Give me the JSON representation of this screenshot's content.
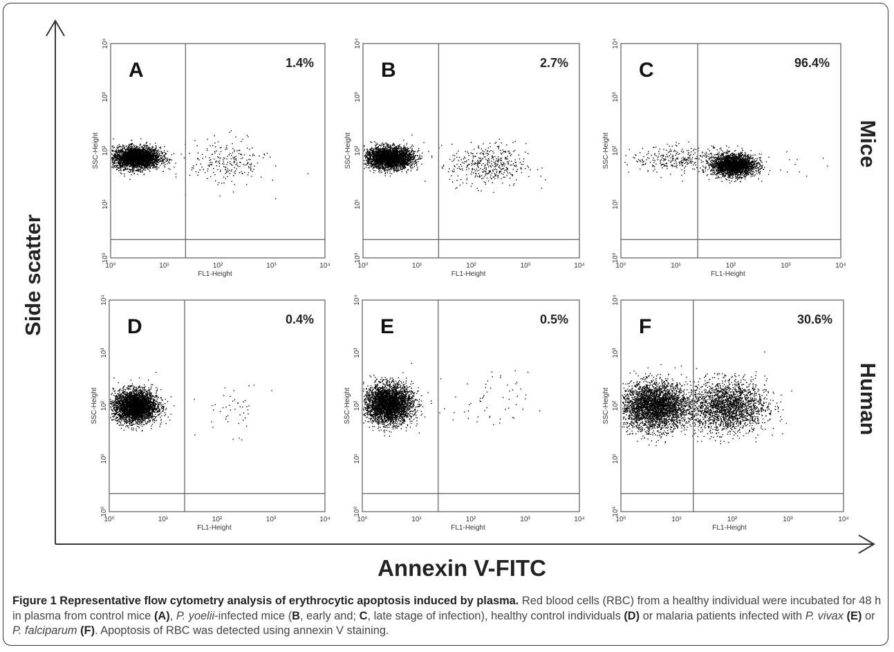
{
  "figure": {
    "y_axis_title": "Side scatter",
    "x_axis_title": "Annexin V-FITC",
    "row_labels": [
      "Mice",
      "Human"
    ]
  },
  "chart_data": [
    {
      "type": "scatter",
      "panel": "A",
      "row": "Mice",
      "percent_label": "1.4%",
      "xlabel": "FL1-Height",
      "ylabel": "SSC-Height",
      "xscale": "log",
      "yscale": "log",
      "xlim": [
        1,
        10000
      ],
      "ylim": [
        1,
        10000
      ],
      "xticks": [
        "10⁰",
        "10¹",
        "10²",
        "10³",
        "10⁴"
      ],
      "yticks": [
        "10⁰",
        "10¹",
        "10²",
        "10³",
        "10⁴"
      ],
      "gate_x": 25,
      "gate_y": 2.2,
      "percent_positive": 1.4,
      "clusters": [
        {
          "cx": 3,
          "cy": 75,
          "sx": 0.22,
          "sy": 0.1,
          "n": 3200
        },
        {
          "cx": 150,
          "cy": 60,
          "sx": 0.35,
          "sy": 0.22,
          "n": 230
        }
      ]
    },
    {
      "type": "scatter",
      "panel": "B",
      "row": "Mice",
      "percent_label": "2.7%",
      "xlabel": "FL1-Height",
      "ylabel": "SSC-Height",
      "xscale": "log",
      "yscale": "log",
      "xlim": [
        1,
        10000
      ],
      "ylim": [
        1,
        10000
      ],
      "xticks": [
        "10⁰",
        "10¹",
        "10²",
        "10³",
        "10⁴"
      ],
      "yticks": [
        "10⁰",
        "10¹",
        "10²",
        "10³",
        "10⁴"
      ],
      "gate_x": 25,
      "gate_y": 2.2,
      "percent_positive": 2.7,
      "clusters": [
        {
          "cx": 3,
          "cy": 75,
          "sx": 0.22,
          "sy": 0.1,
          "n": 3200
        },
        {
          "cx": 200,
          "cy": 55,
          "sx": 0.35,
          "sy": 0.2,
          "n": 420
        }
      ]
    },
    {
      "type": "scatter",
      "panel": "C",
      "row": "Mice",
      "percent_label": "96.4%",
      "xlabel": "FL1-Height",
      "ylabel": "SSC-Height",
      "xscale": "log",
      "yscale": "log",
      "xlim": [
        1,
        10000
      ],
      "ylim": [
        1,
        10000
      ],
      "xticks": [
        "10⁰",
        "10¹",
        "10²",
        "10³",
        "10⁴"
      ],
      "yticks": [
        "10⁰",
        "10¹",
        "10²",
        "10³",
        "10⁴"
      ],
      "gate_x": 25,
      "gate_y": 2.2,
      "percent_positive": 96.4,
      "clusters": [
        {
          "cx": 110,
          "cy": 55,
          "sx": 0.2,
          "sy": 0.1,
          "n": 2600
        },
        {
          "cx": 12,
          "cy": 70,
          "sx": 0.45,
          "sy": 0.12,
          "n": 320
        },
        {
          "cx": 1500,
          "cy": 70,
          "sx": 0.25,
          "sy": 0.15,
          "n": 10
        }
      ]
    },
    {
      "type": "scatter",
      "panel": "D",
      "row": "Human",
      "percent_label": "0.4%",
      "xlabel": "FL1-Height",
      "ylabel": "SSC-Height",
      "xscale": "log",
      "yscale": "log",
      "xlim": [
        1,
        10000
      ],
      "ylim": [
        1,
        10000
      ],
      "xticks": [
        "10⁰",
        "10¹",
        "10²",
        "10³",
        "10⁴"
      ],
      "yticks": [
        "10⁰",
        "10¹",
        "10²",
        "10³",
        "10⁴"
      ],
      "gate_x": 25,
      "gate_y": 2.2,
      "percent_positive": 0.4,
      "clusters": [
        {
          "cx": 3,
          "cy": 100,
          "sx": 0.2,
          "sy": 0.15,
          "n": 3600
        },
        {
          "cx": 200,
          "cy": 90,
          "sx": 0.3,
          "sy": 0.25,
          "n": 45
        }
      ]
    },
    {
      "type": "scatter",
      "panel": "E",
      "row": "Human",
      "percent_label": "0.5%",
      "xlabel": "FL1-Height",
      "ylabel": "SSC-Height",
      "xscale": "log",
      "yscale": "log",
      "xlim": [
        1,
        10000
      ],
      "ylim": [
        1,
        10000
      ],
      "xticks": [
        "10⁰",
        "10¹",
        "10²",
        "10³",
        "10⁴"
      ],
      "yticks": [
        "10⁰",
        "10¹",
        "10²",
        "10³",
        "10⁴"
      ],
      "gate_x": 25,
      "gate_y": 2.2,
      "percent_positive": 0.5,
      "clusters": [
        {
          "cx": 3,
          "cy": 110,
          "sx": 0.22,
          "sy": 0.18,
          "n": 3600
        },
        {
          "cx": 220,
          "cy": 110,
          "sx": 0.35,
          "sy": 0.3,
          "n": 55
        }
      ]
    },
    {
      "type": "scatter",
      "panel": "F",
      "row": "Human",
      "percent_label": "30.6%",
      "xlabel": "FL1-Height",
      "ylabel": "SSC-Height",
      "xscale": "log",
      "yscale": "log",
      "xlim": [
        1,
        10000
      ],
      "ylim": [
        1,
        10000
      ],
      "xticks": [
        "10⁰",
        "10¹",
        "10²",
        "10³",
        "10⁴"
      ],
      "yticks": [
        "10⁰",
        "10¹",
        "10²",
        "10³",
        "10⁴"
      ],
      "gate_x": 20,
      "gate_y": 2.2,
      "percent_positive": 30.6,
      "clusters": [
        {
          "cx": 4,
          "cy": 100,
          "sx": 0.3,
          "sy": 0.22,
          "n": 3400
        },
        {
          "cx": 80,
          "cy": 100,
          "sx": 0.35,
          "sy": 0.24,
          "n": 2200
        }
      ]
    }
  ],
  "caption": {
    "title": "Figure 1 Representative flow cytometry analysis of erythrocytic apoptosis induced by plasma.",
    "parts": [
      {
        "text": " Red blood cells (RBC) from a healthy individual were incubated for 48 h in plasma from control mice ",
        "style": "normal"
      },
      {
        "text": "(A)",
        "style": "bold"
      },
      {
        "text": ", ",
        "style": "normal"
      },
      {
        "text": "P. yoelii",
        "style": "italic"
      },
      {
        "text": "-infected mice (",
        "style": "normal"
      },
      {
        "text": "B",
        "style": "bold"
      },
      {
        "text": ", early and; ",
        "style": "normal"
      },
      {
        "text": "C",
        "style": "bold"
      },
      {
        "text": ", late stage of infection), healthy control individuals ",
        "style": "normal"
      },
      {
        "text": "(D)",
        "style": "bold"
      },
      {
        "text": " or malaria patients infected with ",
        "style": "normal"
      },
      {
        "text": "P. vivax",
        "style": "italic"
      },
      {
        "text": " ",
        "style": "normal"
      },
      {
        "text": "(E)",
        "style": "bold"
      },
      {
        "text": " or ",
        "style": "normal"
      },
      {
        "text": "P. falciparum",
        "style": "italic"
      },
      {
        "text": " ",
        "style": "normal"
      },
      {
        "text": "(F)",
        "style": "bold"
      },
      {
        "text": ". Apoptosis of RBC was detected using annexin V staining.",
        "style": "normal"
      }
    ]
  }
}
